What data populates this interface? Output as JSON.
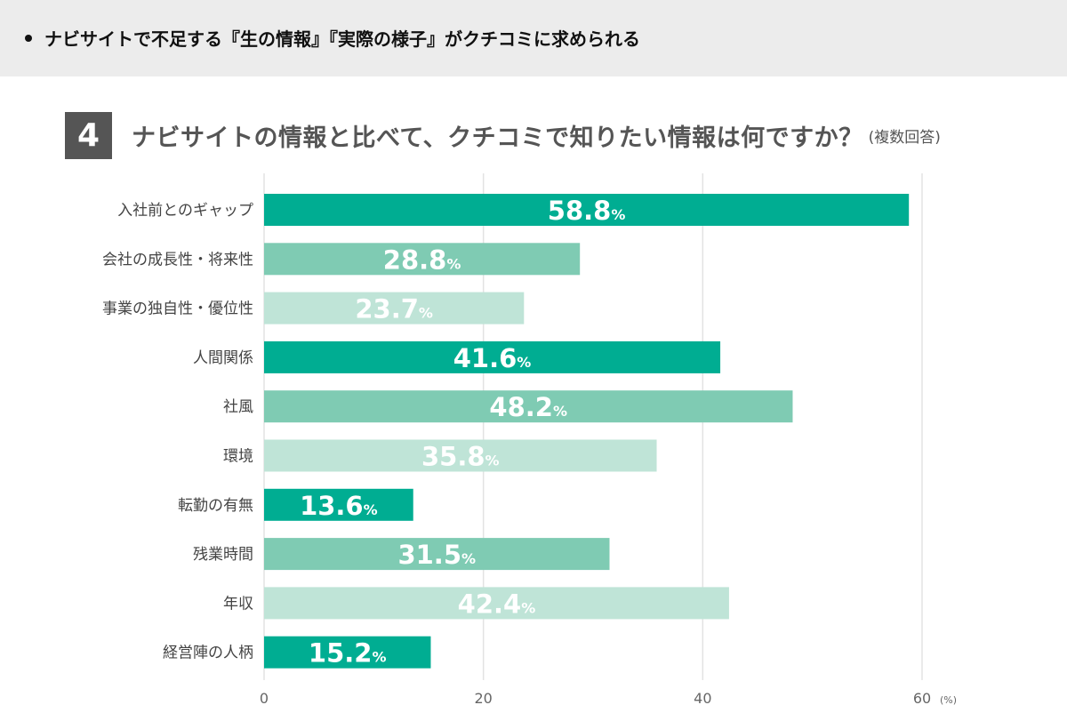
{
  "header": {
    "text": "ナビサイトで不足する『生の情報』『実際の様子』がクチコミに求められる"
  },
  "question": {
    "number": "4",
    "text": "ナビサイトの情報と比べて、クチコミで知りたい情報は何ですか？",
    "note": "(複数回答)"
  },
  "colors": {
    "dark": "#00ad92",
    "mid": "#7fcbb3",
    "light": "#bfe4d7",
    "grid": "#e3e3e3"
  },
  "chart_data": {
    "type": "bar",
    "orientation": "horizontal",
    "categories": [
      "入社前とのギャップ",
      "会社の成長性・将来性",
      "事業の独自性・優位性",
      "人間関係",
      "社風",
      "環境",
      "転勤の有無",
      "残業時間",
      "年収",
      "経営陣の人柄"
    ],
    "values": [
      58.8,
      28.8,
      23.7,
      41.6,
      48.2,
      35.8,
      13.6,
      31.5,
      42.4,
      15.2
    ],
    "value_suffix": "%",
    "xlim": [
      0,
      60
    ],
    "ticks": [
      0,
      20,
      40,
      60
    ],
    "tick_labels": [
      "0",
      "20",
      "40",
      "60"
    ],
    "unit_label": "(%)",
    "grid": true
  }
}
